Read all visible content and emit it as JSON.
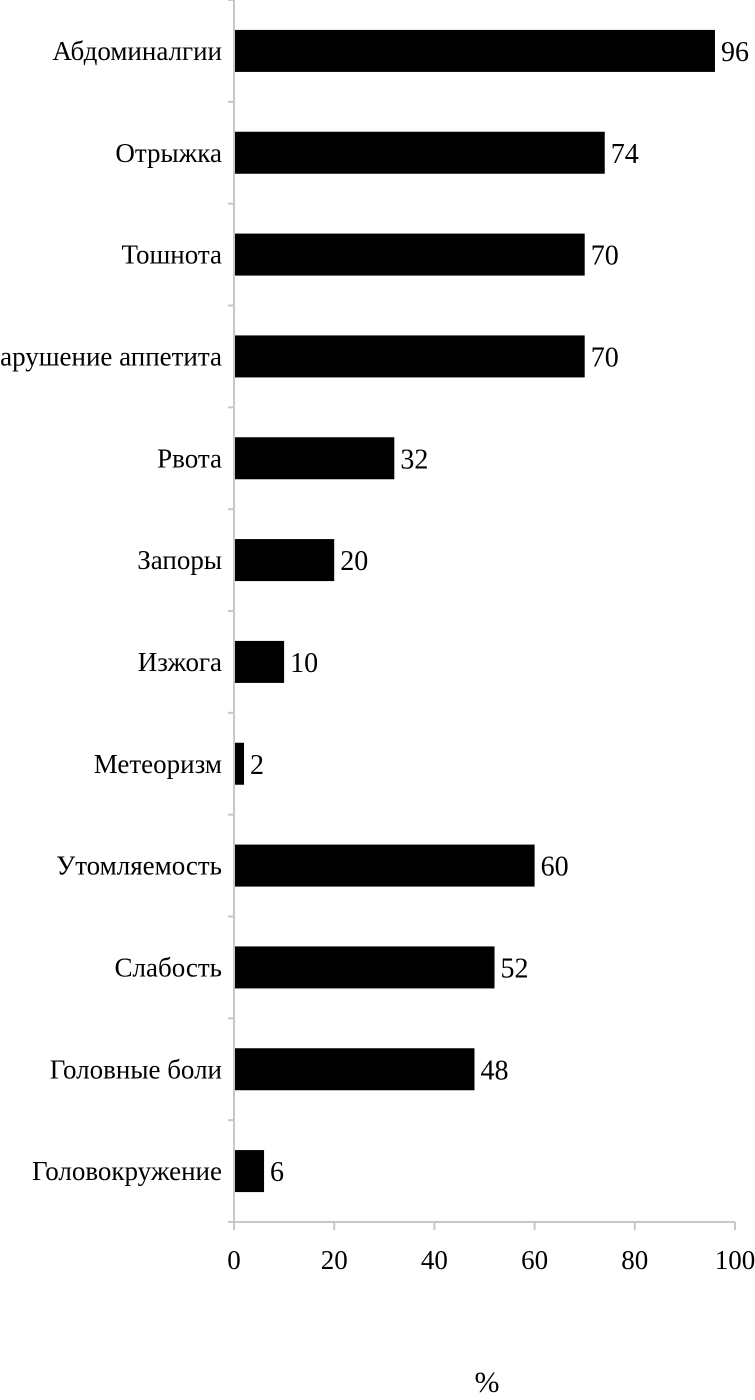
{
  "chart_data": {
    "type": "bar",
    "orientation": "horizontal",
    "categories": [
      "Абдоминалгии",
      "Отрыжка",
      "Тошнота",
      "Нарушение аппетита",
      "Рвота",
      "Запоры",
      "Изжога",
      "Метеоризм",
      "Утомляемость",
      "Слабость",
      "Головные боли",
      "Головокружение"
    ],
    "values": [
      96,
      74,
      70,
      70,
      32,
      20,
      10,
      2,
      60,
      52,
      48,
      6
    ],
    "xlabel": "%",
    "ylabel": "",
    "xlim": [
      0,
      100
    ],
    "x_ticks": [
      0,
      20,
      40,
      60,
      80,
      100
    ],
    "data_labels": true,
    "grid": false,
    "legend": "none",
    "bar_color": "#000000",
    "axis_color": "#c8c8c8"
  }
}
